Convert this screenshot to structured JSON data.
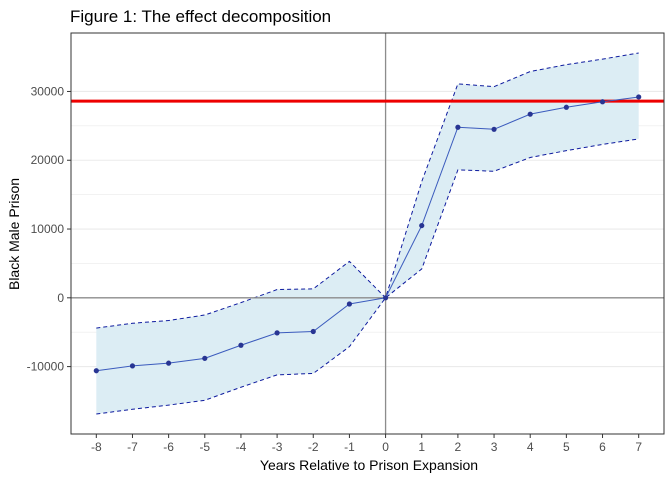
{
  "chart_data": {
    "type": "line",
    "title": "Figure 1: The effect decomposition",
    "xlabel": "Years Relative to Prison Expansion",
    "ylabel": "Black Male Prison",
    "x": [
      -8,
      -7,
      -6,
      -5,
      -4,
      -3,
      -2,
      -1,
      0,
      1,
      2,
      3,
      4,
      5,
      6,
      7
    ],
    "x_ticks": [
      "-8",
      "-7",
      "-6",
      "-5",
      "-4",
      "-3",
      "-2",
      "-1",
      "0",
      "1",
      "2",
      "3",
      "4",
      "5",
      "6",
      "7"
    ],
    "y_ticks": [
      -10000,
      0,
      10000,
      20000,
      30000
    ],
    "y_tick_labels": [
      "-10000",
      "0",
      "10000",
      "20000",
      "30000"
    ],
    "xlim": [
      -8.7,
      7.7
    ],
    "ylim": [
      -19800,
      38500
    ],
    "grid": "horizontal major and minor gridlines",
    "series": [
      {
        "values": [
          -10600,
          -9900,
          -9500,
          -8800,
          -6900,
          -5100,
          -4900,
          -900,
          0,
          10500,
          24800,
          24500,
          26700,
          27700,
          28500,
          29200
        ],
        "lower": [
          -16900,
          -16200,
          -15600,
          -14900,
          -13000,
          -11200,
          -11000,
          -7100,
          0,
          4200,
          18600,
          18400,
          20400,
          21400,
          22300,
          23100
        ],
        "upper": [
          -4400,
          -3700,
          -3300,
          -2500,
          -700,
          1200,
          1300,
          5300,
          0,
          16900,
          31100,
          30700,
          32900,
          33900,
          34700,
          35600
        ]
      }
    ],
    "reference_lines": {
      "horizontal_red": 28600,
      "horizontal_gray": 0,
      "vertical_gray": 0
    },
    "colors": {
      "line": "#3b5bbd",
      "point": "#283593",
      "ribbon_fill": "#dcedf4",
      "ci_dash": "#0d1a9e",
      "red_line": "#ee0000",
      "ref_line": "#8c8c8c",
      "grid": "#ebebeb",
      "frame": "#333333"
    }
  }
}
